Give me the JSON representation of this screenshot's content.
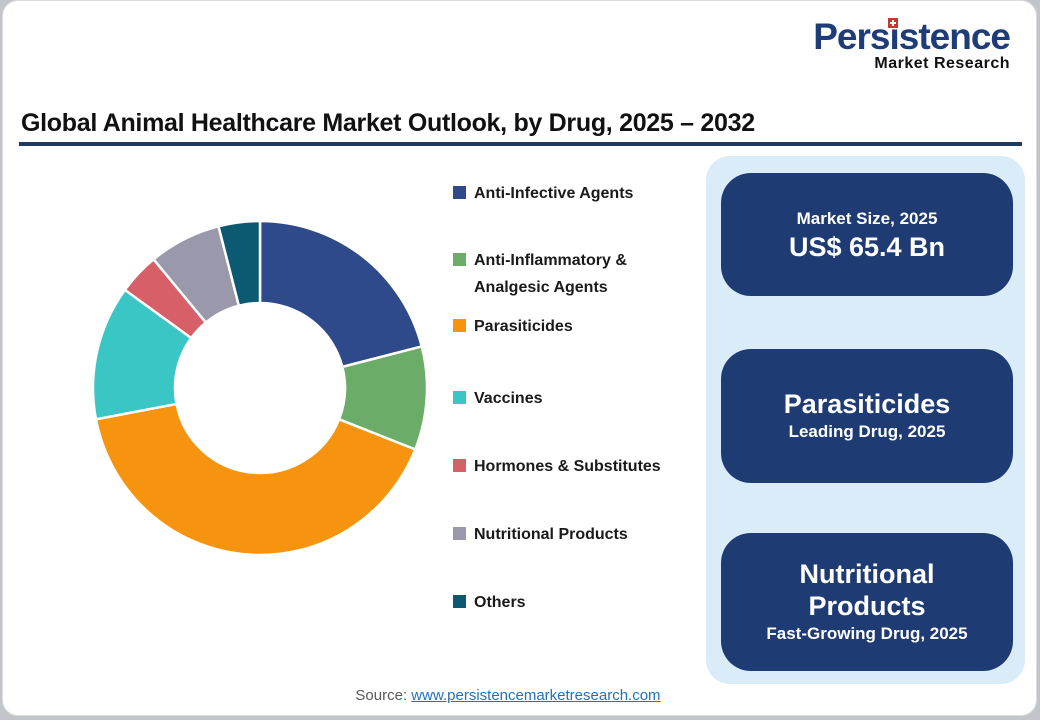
{
  "logo": {
    "name": "Persistence",
    "tagline": "Market Research",
    "brand_color": "#1e3c78",
    "dot_color": "#c8372d"
  },
  "header": {
    "title": "Global Animal Healthcare Market Outlook, by Drug, 2025 – 2032",
    "rule_color": "#1f3864"
  },
  "chart_data": {
    "type": "pie",
    "subtype": "donut",
    "title": "Global Animal Healthcare Market Outlook, by Drug, 2025 – 2032",
    "categories": [
      "Anti-Infective Agents",
      "Anti-Inflammatory &\nAnalgesic Agents",
      "Parasiticides",
      "Vaccines",
      "Hormones & Substitutes",
      "Nutritional Products",
      "Others"
    ],
    "values": [
      21,
      10,
      41,
      13,
      4,
      7,
      4
    ],
    "unit": "% share (estimated from arc angles; no data labels shown)",
    "colors": [
      "#2e4a8b",
      "#6bad68",
      "#f7940f",
      "#3ac6c4",
      "#d65f68",
      "#9a99ac",
      "#0b5a71"
    ],
    "start_angle_deg": 0,
    "direction": "clockwise",
    "inner_radius_ratio": 0.51,
    "legend_position": "right",
    "data_labels": false
  },
  "cards": [
    {
      "line_small": "Market Size, 2025",
      "line_big": "US$ 65.4 Bn"
    },
    {
      "line_big": "Parasiticides",
      "line_small": "Leading Drug, 2025"
    },
    {
      "line_big": "Nutritional Products",
      "line_small": "Fast-Growing Drug, 2025"
    }
  ],
  "panel": {
    "background": "#d9ecf8",
    "card_background": "#1f3b73"
  },
  "source": {
    "label": "Source: ",
    "link": "www.persistencemarketresearch.com",
    "link_color": "#1e73be"
  }
}
